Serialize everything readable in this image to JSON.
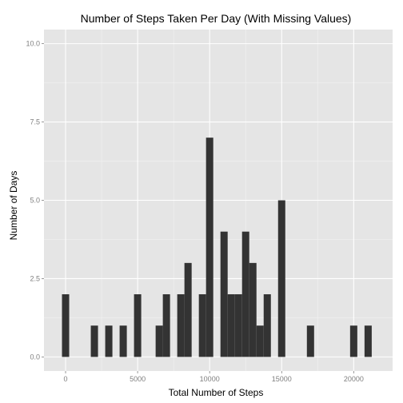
{
  "chart_data": {
    "type": "bar",
    "title": "Number of Steps Taken Per Day (With Missing Values)",
    "xlabel": "Total Number of Steps",
    "ylabel": "Number of Days",
    "xlim": [
      -1500,
      22700
    ],
    "ylim": [
      -0.45,
      10.45
    ],
    "x_ticks": [
      0,
      5000,
      10000,
      15000,
      20000
    ],
    "x_tick_labels": [
      "0",
      "5000",
      "10000",
      "15000",
      "20000"
    ],
    "y_ticks": [
      0,
      2.5,
      5,
      7.5,
      10
    ],
    "y_tick_labels": [
      "0.0",
      "2.5",
      "5.0",
      "7.5",
      "10.0"
    ],
    "grid": true,
    "bin_width": 500,
    "bars": [
      {
        "x": 0,
        "count": 2
      },
      {
        "x": 2000,
        "count": 1
      },
      {
        "x": 3000,
        "count": 1
      },
      {
        "x": 4000,
        "count": 1
      },
      {
        "x": 5000,
        "count": 2
      },
      {
        "x": 6500,
        "count": 1
      },
      {
        "x": 7000,
        "count": 2
      },
      {
        "x": 8000,
        "count": 2
      },
      {
        "x": 8500,
        "count": 3
      },
      {
        "x": 9500,
        "count": 2
      },
      {
        "x": 10000,
        "count": 7
      },
      {
        "x": 11000,
        "count": 4
      },
      {
        "x": 11500,
        "count": 2
      },
      {
        "x": 12000,
        "count": 2
      },
      {
        "x": 12500,
        "count": 4
      },
      {
        "x": 13000,
        "count": 3
      },
      {
        "x": 13500,
        "count": 1
      },
      {
        "x": 14000,
        "count": 2
      },
      {
        "x": 15000,
        "count": 5
      },
      {
        "x": 17000,
        "count": 1
      },
      {
        "x": 20000,
        "count": 1
      },
      {
        "x": 21000,
        "count": 1
      }
    ],
    "colors": {
      "panel": "#e5e5e5",
      "grid_major": "#ffffff",
      "grid_minor": "#f2f2f2",
      "bar": "#333333"
    }
  }
}
